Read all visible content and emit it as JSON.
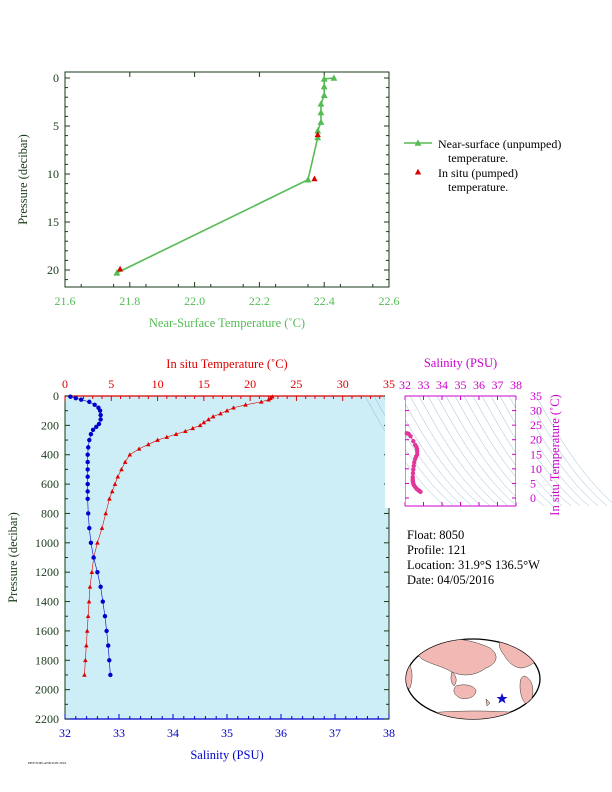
{
  "colors": {
    "near_surface": "#55bb55",
    "insitu_marker": "#dd0000",
    "temperature": "#dd0000",
    "salinity": "#0000cc",
    "ts_panel": "#cc00cc",
    "profile_bg": "#cdeef6",
    "axis_dark": "#1a3a1a",
    "ts_pink": "#e0389a"
  },
  "float_info": {
    "float": "Float:  8050",
    "profile": "Profile:  121",
    "location": "Location:  31.9°S  136.5°W",
    "date": "Date:  04/05/2016"
  },
  "footer": "PHYTOPLANKTON 2016",
  "chart_data": [
    {
      "id": "near_surface",
      "type": "line",
      "title": "",
      "xlabel": "Near-Surface Temperature (˚C)",
      "ylabel": "Pressure (decibar)",
      "xlim": [
        21.6,
        22.6
      ],
      "ylim": [
        0,
        22
      ],
      "y_inverted": true,
      "x_ticks": [
        21.6,
        21.8,
        22.0,
        22.2,
        22.4,
        22.6
      ],
      "x_tick_labels": [
        "21.6",
        "21.8",
        "22.0",
        "22.2",
        "22.4",
        "22.6"
      ],
      "y_ticks": [
        0,
        5,
        10,
        15,
        20
      ],
      "y_tick_labels": [
        "0",
        "5",
        "10",
        "15",
        "20"
      ],
      "legend": {
        "placement": "right",
        "items": [
          {
            "line1": "Near-surface (unpumped)",
            "line2": "temperature."
          },
          {
            "line1": "In situ (pumped)",
            "line2": "temperature."
          }
        ]
      },
      "series": [
        {
          "name": "Near-surface (unpumped) temperature.",
          "points": [
            [
              22.43,
              0.0
            ],
            [
              22.4,
              0.1
            ],
            [
              22.4,
              0.9
            ],
            [
              22.4,
              1.8
            ],
            [
              22.39,
              2.7
            ],
            [
              22.39,
              3.6
            ],
            [
              22.39,
              4.6
            ],
            [
              22.38,
              5.5
            ],
            [
              22.38,
              6.2
            ],
            [
              22.35,
              10.6
            ],
            [
              21.76,
              20.3
            ]
          ]
        },
        {
          "name": "In situ (pumped) temperature.",
          "points": [
            [
              22.38,
              5.9
            ],
            [
              22.37,
              10.5
            ],
            [
              21.77,
              19.9
            ]
          ]
        }
      ]
    },
    {
      "id": "profile",
      "type": "line",
      "title": "",
      "xlabel": "Salinity (PSU)",
      "x2label": "In situ Temperature (˚C)",
      "ylabel": "Pressure (decibar)",
      "salinity_lim": [
        32,
        38
      ],
      "temperature_lim": [
        0,
        35
      ],
      "ylim": [
        0,
        2200
      ],
      "y_inverted": true,
      "salinity_ticks": [
        32,
        33,
        34,
        35,
        36,
        37,
        38
      ],
      "salinity_tick_labels": [
        "32",
        "33",
        "34",
        "35",
        "36",
        "37",
        "38"
      ],
      "temperature_ticks": [
        0,
        5,
        10,
        15,
        20,
        25,
        30,
        35
      ],
      "temperature_tick_labels": [
        "0",
        "5",
        "10",
        "15",
        "20",
        "25",
        "30",
        "35"
      ],
      "y_ticks": [
        0,
        200,
        400,
        600,
        800,
        1000,
        1200,
        1400,
        1600,
        1800,
        2000,
        2200
      ],
      "y_tick_labels": [
        "0",
        "200",
        "400",
        "600",
        "800",
        "1000",
        "1200",
        "1400",
        "1600",
        "1800",
        "2000",
        "2200"
      ],
      "temperature_series": {
        "name": "In situ Temperature",
        "points": [
          [
            22.4,
            5
          ],
          [
            22.2,
            15
          ],
          [
            22.0,
            25
          ],
          [
            21.2,
            40
          ],
          [
            19.5,
            60
          ],
          [
            18.2,
            80
          ],
          [
            17.5,
            100
          ],
          [
            16.8,
            120
          ],
          [
            16.0,
            140
          ],
          [
            15.5,
            160
          ],
          [
            15.0,
            180
          ],
          [
            14.6,
            200
          ],
          [
            13.8,
            220
          ],
          [
            13.0,
            240
          ],
          [
            12.0,
            260
          ],
          [
            11.0,
            280
          ],
          [
            10.0,
            300
          ],
          [
            9.0,
            330
          ],
          [
            8.0,
            360
          ],
          [
            7.0,
            400
          ],
          [
            6.5,
            450
          ],
          [
            6.1,
            500
          ],
          [
            5.7,
            550
          ],
          [
            5.4,
            600
          ],
          [
            5.1,
            650
          ],
          [
            4.8,
            700
          ],
          [
            4.4,
            800
          ],
          [
            4.0,
            900
          ],
          [
            3.5,
            1000
          ],
          [
            3.1,
            1100
          ],
          [
            2.9,
            1200
          ],
          [
            2.7,
            1300
          ],
          [
            2.6,
            1400
          ],
          [
            2.5,
            1500
          ],
          [
            2.4,
            1600
          ],
          [
            2.3,
            1700
          ],
          [
            2.2,
            1800
          ],
          [
            2.1,
            1900
          ]
        ]
      },
      "salinity_series": {
        "name": "Salinity",
        "points": [
          [
            32.1,
            5
          ],
          [
            32.2,
            15
          ],
          [
            32.3,
            25
          ],
          [
            32.45,
            40
          ],
          [
            32.55,
            60
          ],
          [
            32.62,
            80
          ],
          [
            32.65,
            100
          ],
          [
            32.66,
            130
          ],
          [
            32.66,
            160
          ],
          [
            32.63,
            190
          ],
          [
            32.58,
            210
          ],
          [
            32.52,
            230
          ],
          [
            32.48,
            260
          ],
          [
            32.45,
            300
          ],
          [
            32.43,
            350
          ],
          [
            32.42,
            400
          ],
          [
            32.42,
            450
          ],
          [
            32.42,
            500
          ],
          [
            32.42,
            550
          ],
          [
            32.42,
            600
          ],
          [
            32.42,
            650
          ],
          [
            32.42,
            700
          ],
          [
            32.43,
            800
          ],
          [
            32.45,
            900
          ],
          [
            32.48,
            1000
          ],
          [
            32.53,
            1100
          ],
          [
            32.6,
            1200
          ],
          [
            32.66,
            1300
          ],
          [
            32.7,
            1400
          ],
          [
            32.74,
            1500
          ],
          [
            32.77,
            1600
          ],
          [
            32.8,
            1700
          ],
          [
            32.82,
            1800
          ],
          [
            32.84,
            1900
          ]
        ]
      }
    },
    {
      "id": "ts_diagram",
      "type": "scatter",
      "title": "",
      "xlabel": "Salinity (PSU)",
      "ylabel": "In situ Temperature (˚C)",
      "xlim": [
        32,
        38
      ],
      "ylim": [
        -2,
        35
      ],
      "x_ticks": [
        32,
        33,
        34,
        35,
        36,
        37,
        38
      ],
      "x_tick_labels": [
        "32",
        "33",
        "34",
        "35",
        "36",
        "37",
        "38"
      ],
      "y_ticks": [
        0,
        5,
        10,
        15,
        20,
        25,
        30,
        35
      ],
      "y_tick_labels": [
        "0",
        "5",
        "10",
        "15",
        "20",
        "25",
        "30",
        "35"
      ],
      "points": [
        [
          32.1,
          22.2
        ],
        [
          32.2,
          22.0
        ],
        [
          32.3,
          21.2
        ],
        [
          32.45,
          19.5
        ],
        [
          32.55,
          18.2
        ],
        [
          32.62,
          17.5
        ],
        [
          32.65,
          16.8
        ],
        [
          32.66,
          16.0
        ],
        [
          32.66,
          15.0
        ],
        [
          32.6,
          14.2
        ],
        [
          32.55,
          13.4
        ],
        [
          32.5,
          12.2
        ],
        [
          32.47,
          11.0
        ],
        [
          32.45,
          9.8
        ],
        [
          32.43,
          8.5
        ],
        [
          32.42,
          7.2
        ],
        [
          32.42,
          6.5
        ],
        [
          32.42,
          6.0
        ],
        [
          32.43,
          5.5
        ],
        [
          32.45,
          5.0
        ],
        [
          32.48,
          4.4
        ],
        [
          32.55,
          3.8
        ],
        [
          32.62,
          3.2
        ],
        [
          32.7,
          2.8
        ],
        [
          32.75,
          2.5
        ],
        [
          32.8,
          2.3
        ],
        [
          32.84,
          2.1
        ]
      ]
    }
  ]
}
